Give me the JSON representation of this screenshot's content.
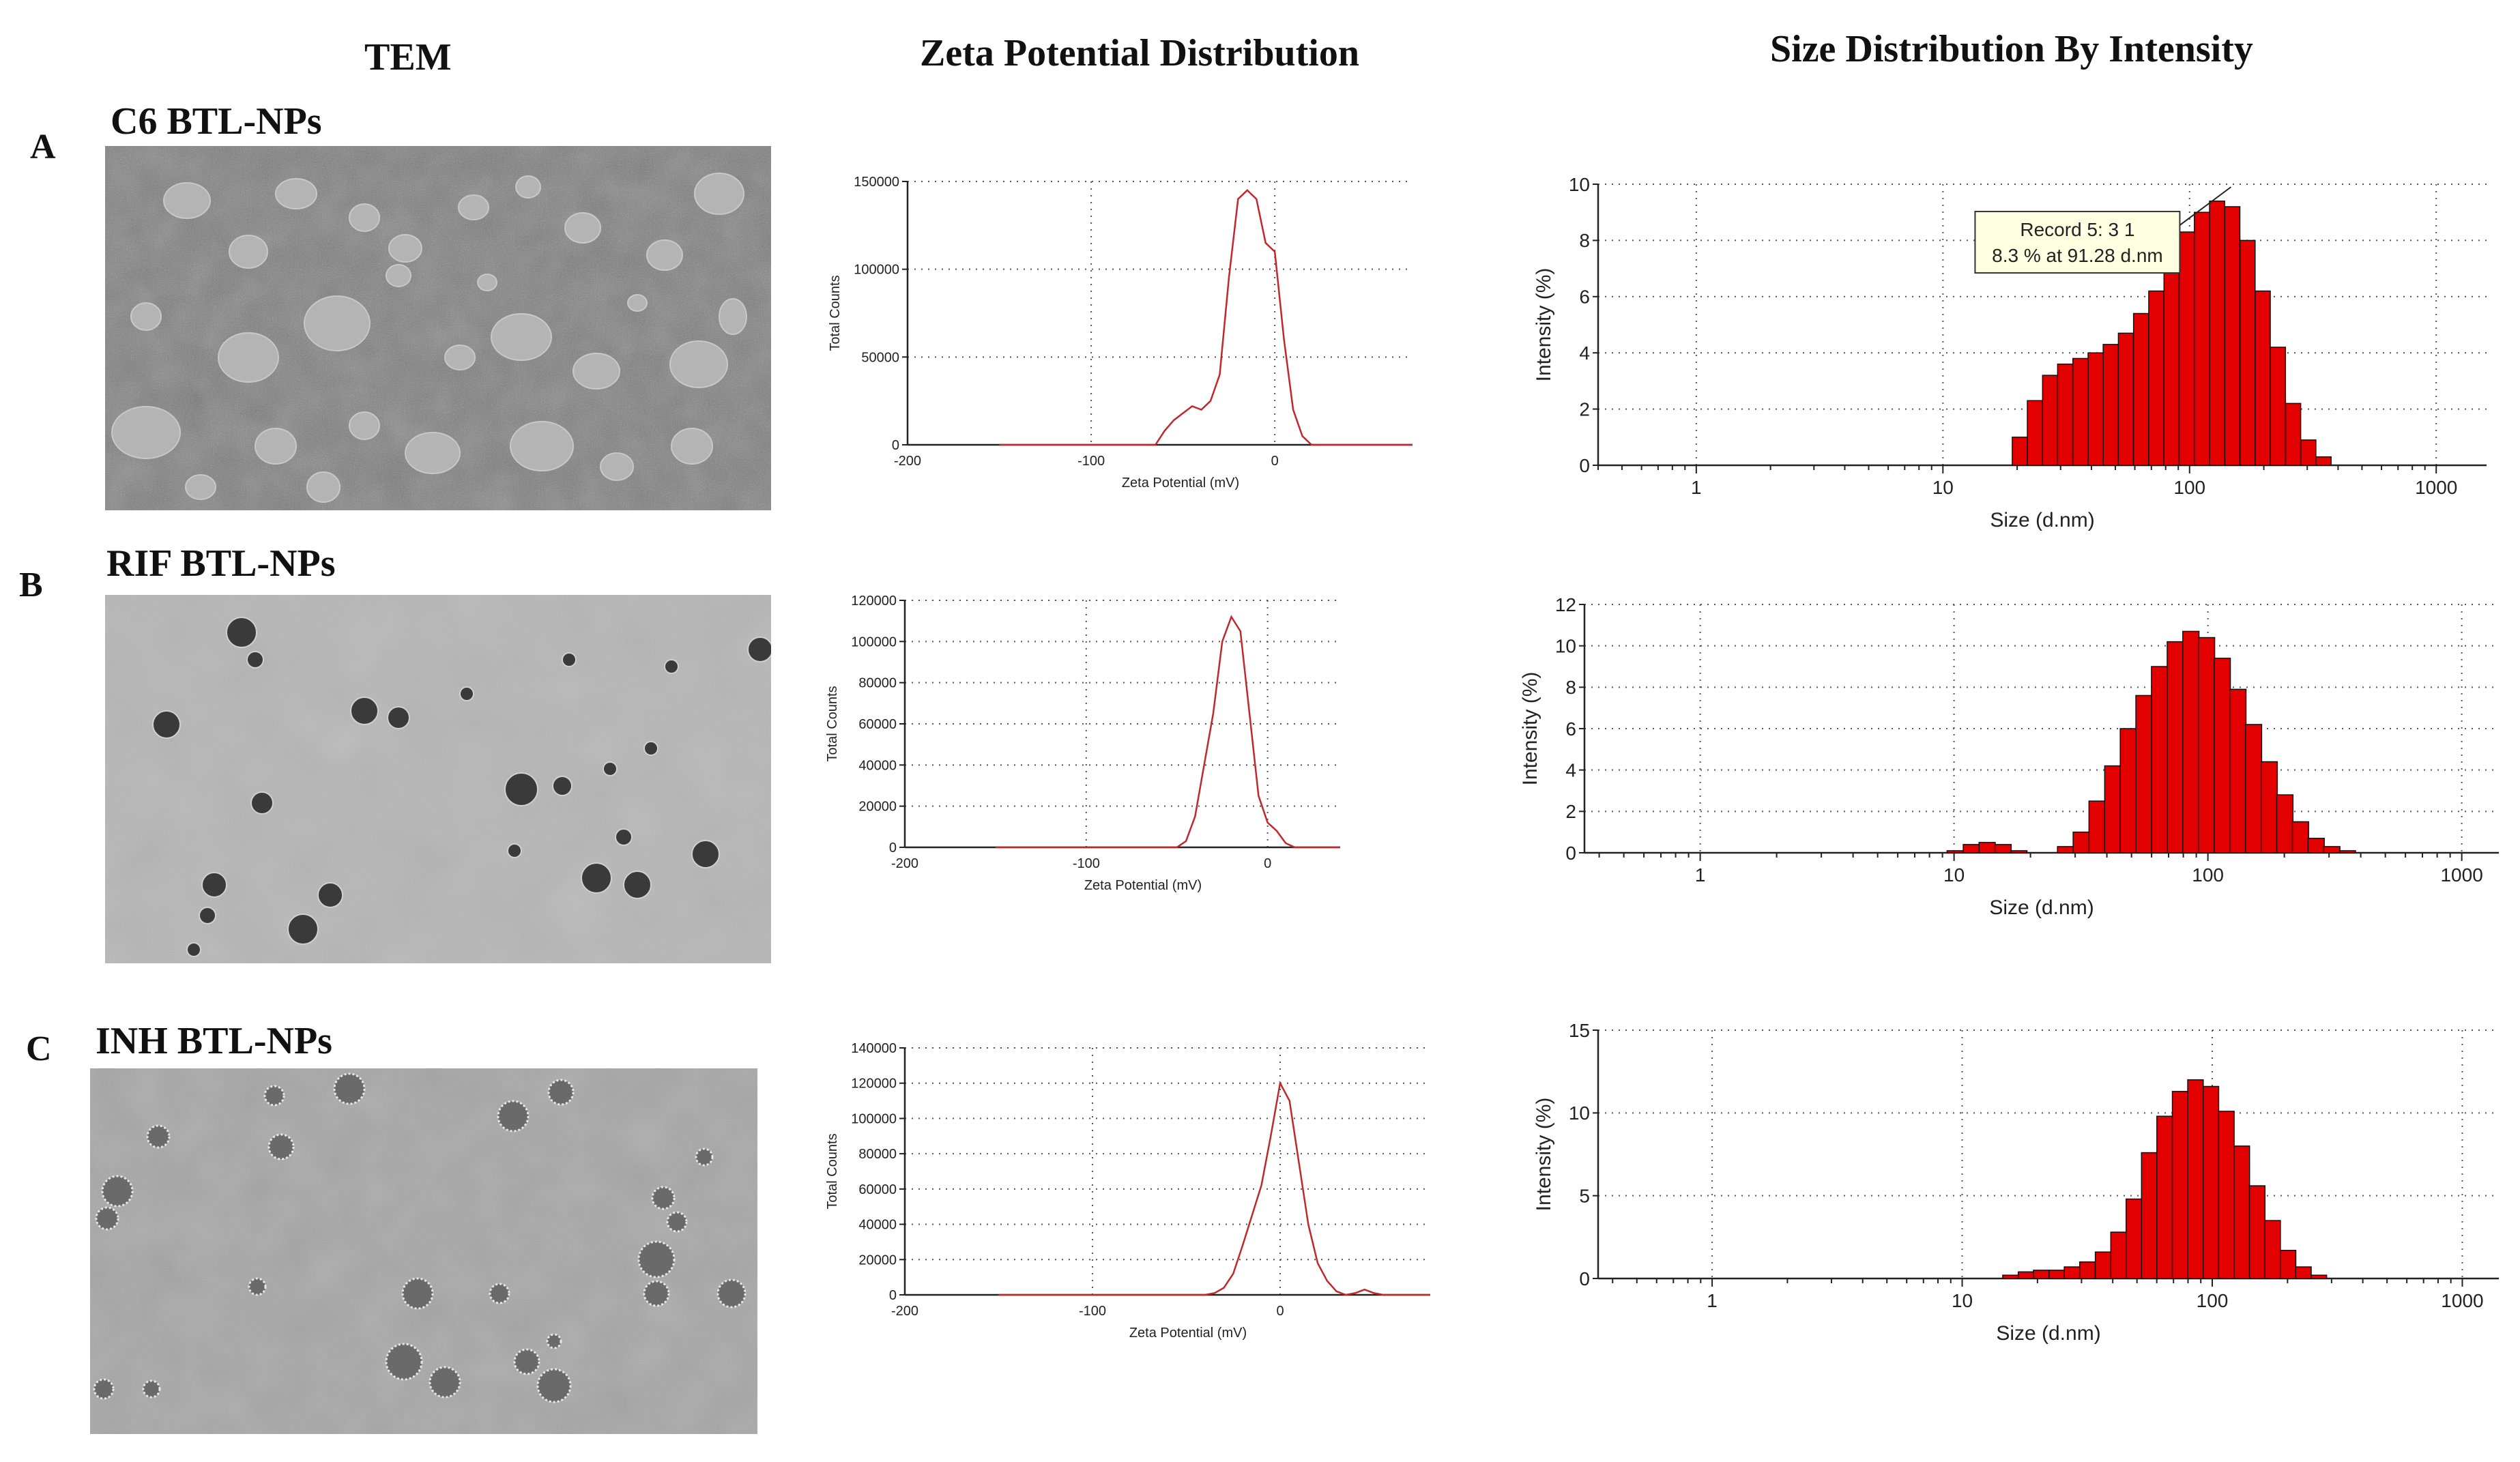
{
  "headers": {
    "tem": "TEM",
    "zeta": "Zeta Potential Distribution",
    "size": "Size Distribution  By Intensity"
  },
  "colors": {
    "zeta_line": "#c0282d",
    "bar_fill": "#e20000",
    "bar_edge": "#111111",
    "tooltip_bg": "#ffffe1"
  },
  "rows": [
    {
      "letter": "A",
      "sample": "C6 BTL-NPs",
      "tem": {
        "style": "dense-gray",
        "description_shown": false
      }
    },
    {
      "letter": "B",
      "sample": "RIF BTL-NPs",
      "tem": {
        "style": "light-dark-particles",
        "description_shown": false
      }
    },
    {
      "letter": "C",
      "sample": "INH BTL-NPs",
      "tem": {
        "style": "light-textured-particles",
        "description_shown": false
      }
    }
  ],
  "chart_data": [
    {
      "id": "zeta-A",
      "type": "line",
      "xlabel": "Zeta Potential (mV)",
      "ylabel": "Total Counts",
      "xlim": [
        -200,
        75
      ],
      "ylim": [
        0,
        150000
      ],
      "xticks": [
        -200,
        -100,
        0
      ],
      "yticks": [
        0,
        50000,
        100000,
        150000
      ],
      "grid": true,
      "x": [
        -150,
        -65,
        -60,
        -55,
        -50,
        -45,
        -40,
        -35,
        -30,
        -25,
        -20,
        -15,
        -10,
        -5,
        0,
        5,
        10,
        15,
        20,
        25,
        75
      ],
      "y": [
        0,
        0,
        8000,
        14000,
        18000,
        22000,
        20000,
        25000,
        40000,
        95000,
        140000,
        145000,
        140000,
        115000,
        110000,
        60000,
        20000,
        5000,
        0,
        0,
        0
      ]
    },
    {
      "id": "zeta-B",
      "type": "line",
      "xlabel": "Zeta Potential (mV)",
      "ylabel": "Total Counts",
      "xlim": [
        -200,
        40
      ],
      "ylim": [
        0,
        120000
      ],
      "xticks": [
        -200,
        -100,
        0
      ],
      "yticks": [
        0,
        20000,
        40000,
        60000,
        80000,
        100000,
        120000
      ],
      "grid": true,
      "x": [
        -150,
        -50,
        -45,
        -40,
        -35,
        -30,
        -25,
        -20,
        -15,
        -10,
        -5,
        0,
        5,
        10,
        15,
        40
      ],
      "y": [
        0,
        0,
        3000,
        15000,
        40000,
        65000,
        100000,
        112000,
        105000,
        65000,
        25000,
        12000,
        8000,
        2000,
        0,
        0
      ]
    },
    {
      "id": "zeta-C",
      "type": "line",
      "xlabel": "Zeta Potential (mV)",
      "ylabel": "Total Counts",
      "xlim": [
        -200,
        80
      ],
      "ylim": [
        0,
        140000
      ],
      "xticks": [
        -200,
        -100,
        0
      ],
      "yticks": [
        0,
        20000,
        40000,
        60000,
        80000,
        100000,
        120000,
        140000
      ],
      "grid": true,
      "x": [
        -150,
        -40,
        -35,
        -30,
        -25,
        -20,
        -15,
        -10,
        -5,
        0,
        5,
        10,
        15,
        20,
        25,
        30,
        35,
        40,
        45,
        50,
        55,
        80
      ],
      "y": [
        0,
        0,
        1000,
        4000,
        12000,
        28000,
        45000,
        62000,
        90000,
        120000,
        110000,
        75000,
        40000,
        18000,
        8000,
        2000,
        0,
        1000,
        3000,
        1000,
        0,
        0
      ]
    },
    {
      "id": "size-A",
      "type": "bar",
      "xscale": "log",
      "xlabel": "Size (d.nm)",
      "ylabel": "Intensity (%)",
      "xlim": [
        0.4,
        1600
      ],
      "ylim": [
        0,
        10
      ],
      "xticks": [
        1,
        10,
        100,
        1000
      ],
      "yticks": [
        0,
        2,
        4,
        6,
        8,
        10
      ],
      "grid": true,
      "x": [
        20.5,
        23.6,
        27.2,
        31.3,
        36.1,
        41.6,
        47.9,
        55.2,
        63.6,
        73.3,
        84.5,
        97.4,
        112.2,
        129.3,
        149.1,
        171.8,
        198.0,
        228.2,
        263.0,
        303.1,
        349.3
      ],
      "values": [
        1.0,
        2.3,
        3.2,
        3.6,
        3.8,
        4.0,
        4.3,
        4.7,
        5.4,
        6.2,
        7.2,
        8.3,
        9.0,
        9.4,
        9.2,
        8.0,
        6.2,
        4.2,
        2.2,
        0.9,
        0.3
      ],
      "annotation": {
        "line1": "Record 5: 3 1",
        "line2": "8.3 % at 91.28 d.nm",
        "x": 91.28,
        "y": 8.3
      }
    },
    {
      "id": "size-B",
      "type": "bar",
      "xscale": "log",
      "xlabel": "Size (d.nm)",
      "ylabel": "Intensity (%)",
      "xlim": [
        0.35,
        1400
      ],
      "ylim": [
        0,
        12
      ],
      "xticks": [
        1,
        10,
        100,
        1000
      ],
      "yticks": [
        0,
        2,
        4,
        6,
        8,
        10,
        12
      ],
      "grid": true,
      "x": [
        10.1,
        11.7,
        13.5,
        15.6,
        18.0,
        20.7,
        23.9,
        27.5,
        31.7,
        36.6,
        42.2,
        48.6,
        56.0,
        64.5,
        74.4,
        85.7,
        98.8,
        113.9,
        131.3,
        151.3,
        174.4,
        201.0,
        231.6,
        267.0,
        307.7,
        354.6
      ],
      "values": [
        0.1,
        0.4,
        0.5,
        0.4,
        0.1,
        0.0,
        0.0,
        0.3,
        1.0,
        2.5,
        4.2,
        6.0,
        7.6,
        9.0,
        10.2,
        10.7,
        10.4,
        9.4,
        7.9,
        6.2,
        4.4,
        2.8,
        1.5,
        0.7,
        0.3,
        0.1
      ]
    },
    {
      "id": "size-C",
      "type": "bar",
      "xscale": "log",
      "xlabel": "Size (d.nm)",
      "ylabel": "Intensity (%)",
      "xlim": [
        0.35,
        1400
      ],
      "ylim": [
        0,
        15
      ],
      "xticks": [
        1,
        10,
        100,
        1000
      ],
      "yticks": [
        0,
        5,
        10,
        15
      ],
      "grid": true,
      "x": [
        15.6,
        18.0,
        20.7,
        23.9,
        27.5,
        31.7,
        36.6,
        42.2,
        48.6,
        56.0,
        64.5,
        74.4,
        85.7,
        98.8,
        113.9,
        131.3,
        151.3,
        174.4,
        201.0,
        231.6,
        267.0
      ],
      "values": [
        0.2,
        0.4,
        0.5,
        0.5,
        0.7,
        1.0,
        1.6,
        2.8,
        4.8,
        7.6,
        9.8,
        11.3,
        12.0,
        11.6,
        10.1,
        8.0,
        5.6,
        3.5,
        1.7,
        0.7,
        0.2
      ]
    }
  ]
}
